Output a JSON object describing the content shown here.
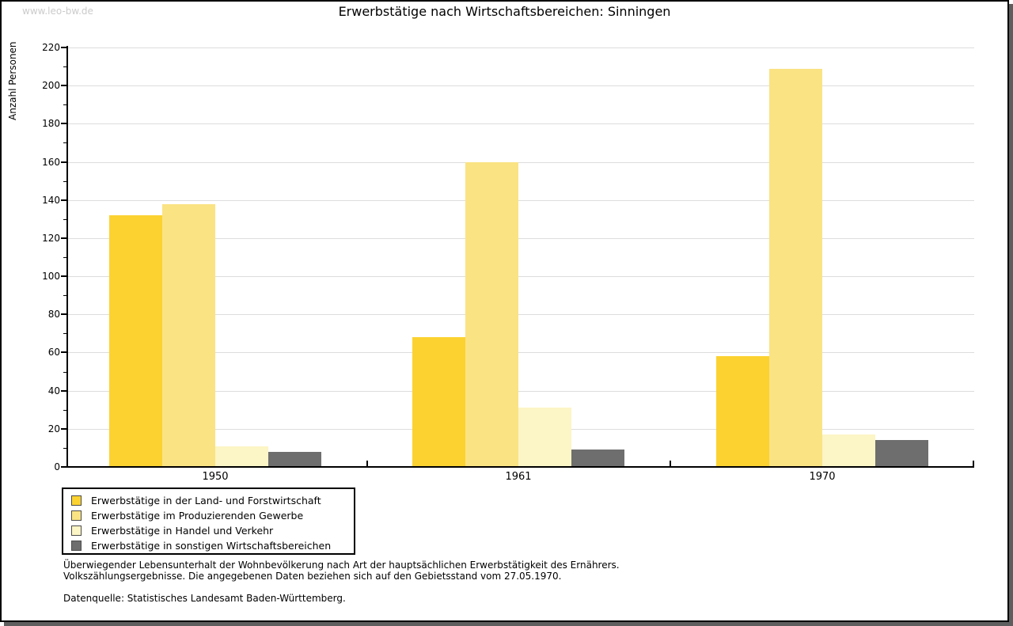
{
  "watermark": "www.leo-bw.de",
  "title": "Erwerbstätige nach Wirtschaftsbereichen: Sinningen",
  "chart_data": {
    "type": "bar",
    "title": "Erwerbstätige nach Wirtschaftsbereichen: Sinningen",
    "xlabel": "",
    "ylabel": "Anzahl Personen",
    "categories": [
      "1950",
      "1961",
      "1970"
    ],
    "series": [
      {
        "name": "Erwerbstätige in der Land- und Forstwirtschaft",
        "color": "#fcd231",
        "values": [
          132,
          68,
          58
        ]
      },
      {
        "name": "Erwerbstätige im Produzierenden Gewerbe",
        "color": "#fae383",
        "values": [
          138,
          160,
          209
        ]
      },
      {
        "name": "Erwerbstätige in Handel und Verkehr",
        "color": "#fcf5c5",
        "values": [
          11,
          31,
          17
        ]
      },
      {
        "name": "Erwerbstätige in sonstigen Wirtschaftsbereichen",
        "color": "#6e6e6e",
        "values": [
          8,
          9,
          14
        ]
      }
    ],
    "ylim": [
      0,
      220
    ],
    "ytick_step": 20,
    "ytick_minor_step": 10,
    "grid": true,
    "legend_position": "bottom-left",
    "gridline_color": "#dddddd"
  },
  "footer": {
    "line1": "Überwiegender Lebensunterhalt der Wohnbevölkerung nach Art der hauptsächlichen Erwerbstätigkeit des Ernährers.",
    "line2": "Volkszählungsergebnisse. Die angegebenen Daten beziehen sich auf den Gebietsstand vom 27.05.1970.",
    "source": "Datenquelle: Statistisches Landesamt Baden-Württemberg."
  }
}
